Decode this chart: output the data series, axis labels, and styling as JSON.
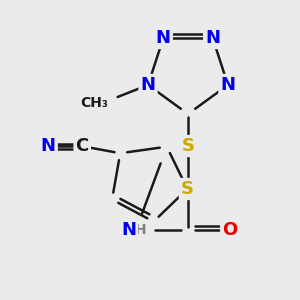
{
  "bg_color": "#ebebeb",
  "atom_colors": {
    "C": "#1a1a1a",
    "N": "#0000ee",
    "O": "#ee0000",
    "S": "#ccaa00",
    "H": "#808080"
  },
  "bond_color": "#1a1a1a",
  "bond_lw": 1.8,
  "font_size_atom": 13,
  "font_size_small": 10
}
